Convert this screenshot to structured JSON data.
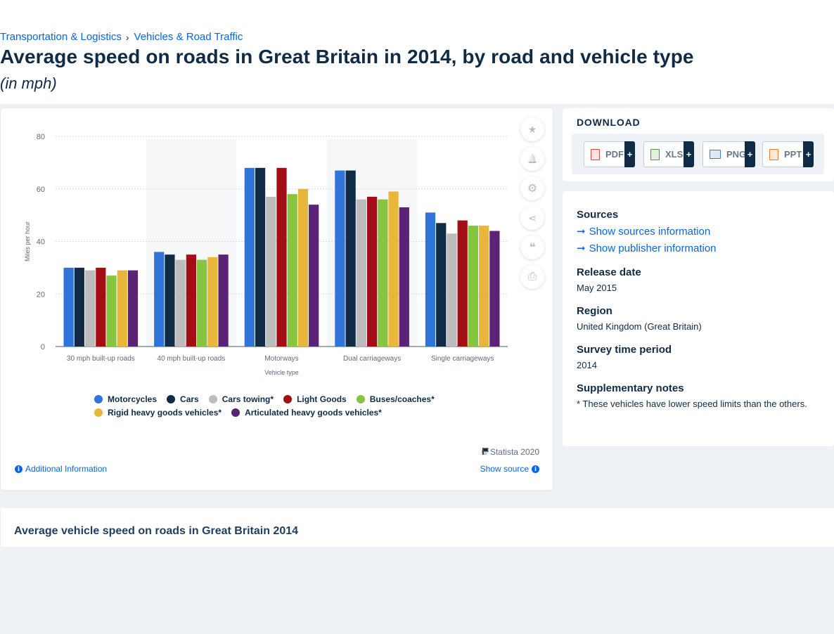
{
  "breadcrumb": {
    "item1": "Transportation & Logistics",
    "separator": "›",
    "item2": "Vehicles & Road Traffic"
  },
  "page": {
    "title": "Average speed on roads in Great Britain in 2014, by road and vehicle type",
    "subtitle": "(in mph)"
  },
  "chart_data": {
    "type": "bar",
    "xlabel": "Vehicle type",
    "ylabel": "Miles per hour",
    "ylim": [
      0,
      80
    ],
    "yticks": [
      0,
      20,
      40,
      60,
      80
    ],
    "grid": true,
    "legend_position": "bottom",
    "categories": [
      "30 mph built-up roads",
      "40 mph built-up roads",
      "Motorways",
      "Dual carriageways",
      "Single carriageways"
    ],
    "series": [
      {
        "name": "Motorcycles",
        "color": "#2f74d8",
        "values": [
          30,
          36,
          68,
          67,
          51
        ]
      },
      {
        "name": "Cars",
        "color": "#0f2b46",
        "values": [
          30,
          35,
          68,
          67,
          47
        ]
      },
      {
        "name": "Cars towing*",
        "color": "#bcbcbc",
        "values": [
          29,
          33,
          57,
          56,
          43
        ]
      },
      {
        "name": "Light Goods",
        "color": "#a30e16",
        "values": [
          30,
          35,
          68,
          57,
          48
        ]
      },
      {
        "name": "Buses/coaches*",
        "color": "#87c540",
        "values": [
          27,
          33,
          58,
          56,
          46
        ]
      },
      {
        "name": "Rigid heavy goods vehicles*",
        "color": "#e8b73a",
        "values": [
          29,
          34,
          60,
          59,
          46
        ]
      },
      {
        "name": "Articulated heavy goods vehicles*",
        "color": "#5a2375",
        "values": [
          29,
          35,
          54,
          53,
          44
        ]
      }
    ]
  },
  "tools": {
    "favorite_icon": "★",
    "alert_icon": "🔔",
    "settings_icon": "⚙",
    "share_icon": "⋖",
    "cite_icon": "❝",
    "print_icon": "⎙"
  },
  "chart_footer": {
    "copyright": "© Statista 2020",
    "additional_info": "Additional Information",
    "show_source": "Show source"
  },
  "download": {
    "label": "DOWNLOAD",
    "buttons": [
      {
        "label": "PDF",
        "color": "#d84a3e"
      },
      {
        "label": "XLS",
        "color": "#3f9c35"
      },
      {
        "label": "PNG",
        "color": "#3b7dc4"
      },
      {
        "label": "PPT",
        "color": "#e2802c"
      }
    ],
    "plus": "+"
  },
  "info": {
    "sources_heading": "Sources",
    "show_sources": "Show sources information",
    "show_publisher": "Show publisher information",
    "release_date_heading": "Release date",
    "release_date": "May 2015",
    "region_heading": "Region",
    "region": "United Kingdom (Great Britain)",
    "survey_heading": "Survey time period",
    "survey": "2014",
    "notes_heading": "Supplementary notes",
    "notes": "* These vehicles have lower speed limits than the others."
  },
  "bottom": {
    "title": "Average vehicle speed on roads in Great Britain 2014"
  }
}
